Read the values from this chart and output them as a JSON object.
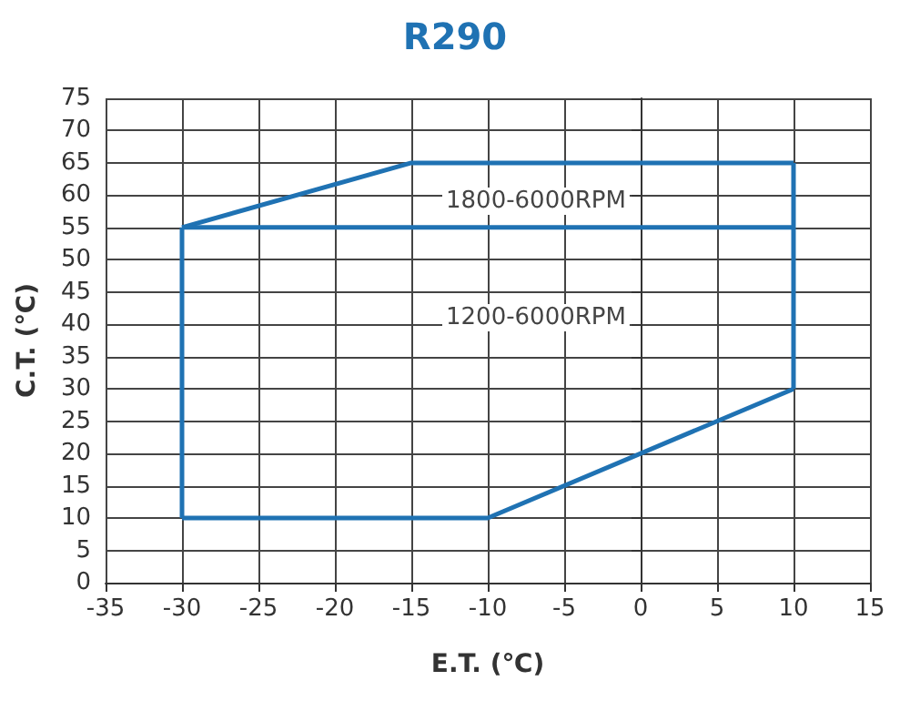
{
  "chart_data": {
    "type": "line",
    "title": "R290",
    "xlabel": "E.T. (℃)",
    "ylabel": "C.T. (℃)",
    "series": [
      {
        "color": "#1f72b3",
        "x": [
          -30,
          -10,
          10
        ],
        "values": [
          10,
          10,
          30
        ]
      },
      {
        "color": "#1f72b3",
        "x": [
          -30,
          -15,
          10
        ],
        "values": [
          55,
          65,
          65
        ]
      },
      {
        "color": "#1f72b3",
        "x": [
          -30,
          10
        ],
        "values": [
          55,
          55
        ]
      },
      {
        "color": "#1f72b3",
        "x": [
          -30,
          -30
        ],
        "values": [
          10,
          55
        ]
      },
      {
        "color": "#1f72b3",
        "x": [
          10,
          10
        ],
        "values": [
          30,
          65
        ]
      }
    ],
    "annotations": [
      "1800-6000RPM",
      "1200-6000RPM"
    ],
    "xlim": [
      -35,
      15
    ],
    "xticks": [
      -35,
      -30,
      -25,
      -20,
      -15,
      -10,
      -5,
      0,
      5,
      10,
      15
    ],
    "ylim": [
      0,
      75
    ],
    "yticks": [
      0,
      5,
      10,
      15,
      20,
      25,
      30,
      35,
      40,
      45,
      50,
      55,
      60,
      65,
      70,
      75
    ],
    "grid": true,
    "marker": "none",
    "line_style": "solid"
  }
}
